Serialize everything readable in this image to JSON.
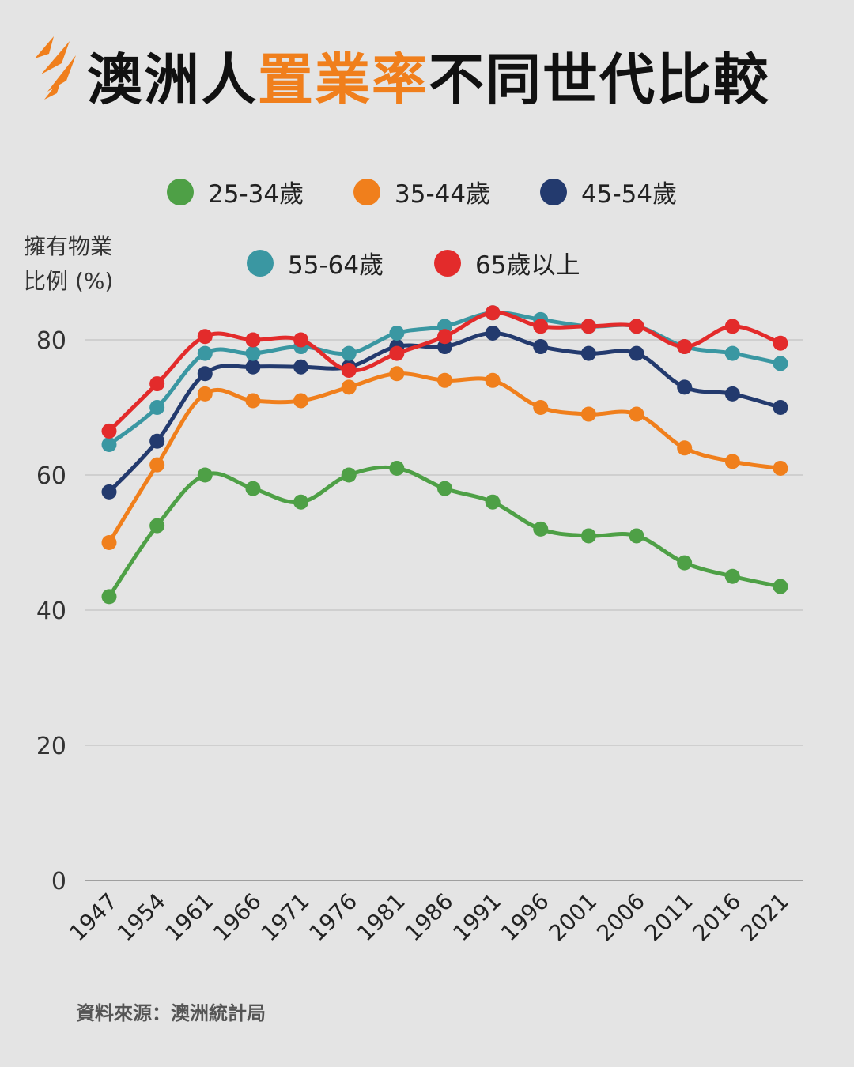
{
  "title": {
    "part1": "澳洲人",
    "highlight": "置業率",
    "part2": "不同世代比較"
  },
  "colors": {
    "background": "#e4e4e4",
    "title_highlight": "#f07f1c",
    "logo": "#f07f1c"
  },
  "logo_icon": "sbs-logo-icon",
  "source": "資料來源：澳洲統計局",
  "chart_data": {
    "type": "line",
    "title": "澳洲人置業率不同世代比較",
    "ylabel_line1": "擁有物業",
    "ylabel_line2": "比例 (%)",
    "xlabel": "",
    "ylim": [
      0,
      100
    ],
    "yticks": [
      0,
      20,
      40,
      60,
      80
    ],
    "grid": true,
    "legend_position": "top",
    "categories": [
      "1947",
      "1954",
      "1961",
      "1966",
      "1971",
      "1976",
      "1981",
      "1986",
      "1991",
      "1996",
      "2001",
      "2006",
      "2011",
      "2016",
      "2021"
    ],
    "series": [
      {
        "name": "25-34歲",
        "color": "#4ea046",
        "values": [
          42,
          52.5,
          60,
          58,
          56,
          60,
          61,
          58,
          56,
          52,
          51,
          51,
          47,
          45,
          43.5
        ]
      },
      {
        "name": "35-44歲",
        "color": "#f07f1c",
        "values": [
          50,
          61.5,
          72,
          71,
          71,
          73,
          75,
          74,
          74,
          70,
          69,
          69,
          64,
          62,
          61
        ]
      },
      {
        "name": "45-54歲",
        "color": "#233a6e",
        "values": [
          57.5,
          65,
          75,
          76,
          76,
          76,
          79,
          79,
          81,
          79,
          78,
          78,
          73,
          72,
          70
        ]
      },
      {
        "name": "55-64歲",
        "color": "#3a97a2",
        "values": [
          64.5,
          70,
          78,
          78,
          79,
          78,
          81,
          82,
          84,
          83,
          82,
          82,
          79,
          78,
          76.5
        ]
      },
      {
        "name": "65歲以上",
        "color": "#e32b2b",
        "values": [
          66.5,
          73.5,
          80.5,
          80,
          80,
          75.5,
          78,
          80.5,
          84,
          82,
          82,
          82,
          79,
          82,
          79.5
        ]
      }
    ]
  }
}
